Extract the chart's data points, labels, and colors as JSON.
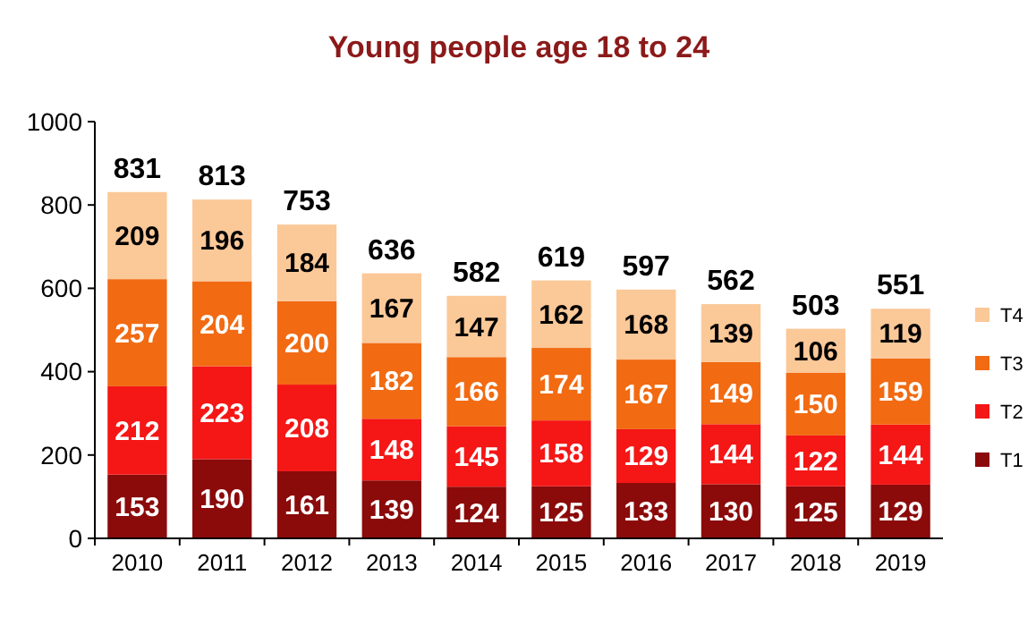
{
  "chart_data": {
    "type": "bar",
    "title": "Young people age 18 to 24",
    "stacked": true,
    "categories": [
      "2010",
      "2011",
      "2012",
      "2013",
      "2014",
      "2015",
      "2016",
      "2017",
      "2018",
      "2019"
    ],
    "series": [
      {
        "name": "T1",
        "color": "#8b0a0a",
        "values": [
          153,
          190,
          161,
          139,
          124,
          125,
          133,
          130,
          125,
          129
        ]
      },
      {
        "name": "T2",
        "color": "#f51616",
        "values": [
          212,
          223,
          208,
          148,
          145,
          158,
          129,
          144,
          122,
          144
        ]
      },
      {
        "name": "T3",
        "color": "#f26a12",
        "values": [
          257,
          204,
          200,
          182,
          166,
          174,
          167,
          149,
          150,
          159
        ]
      },
      {
        "name": "T4",
        "color": "#fbc898",
        "values": [
          209,
          196,
          184,
          167,
          147,
          162,
          168,
          139,
          106,
          119
        ]
      }
    ],
    "totals": [
      "831",
      "813",
      "753",
      "636",
      "582",
      "619",
      "597",
      "562",
      "503",
      "551"
    ],
    "ylim": [
      0,
      1000
    ],
    "yticks": [
      0,
      200,
      400,
      600,
      800,
      1000
    ],
    "grid": false,
    "legend": "right",
    "data_labels": true
  }
}
